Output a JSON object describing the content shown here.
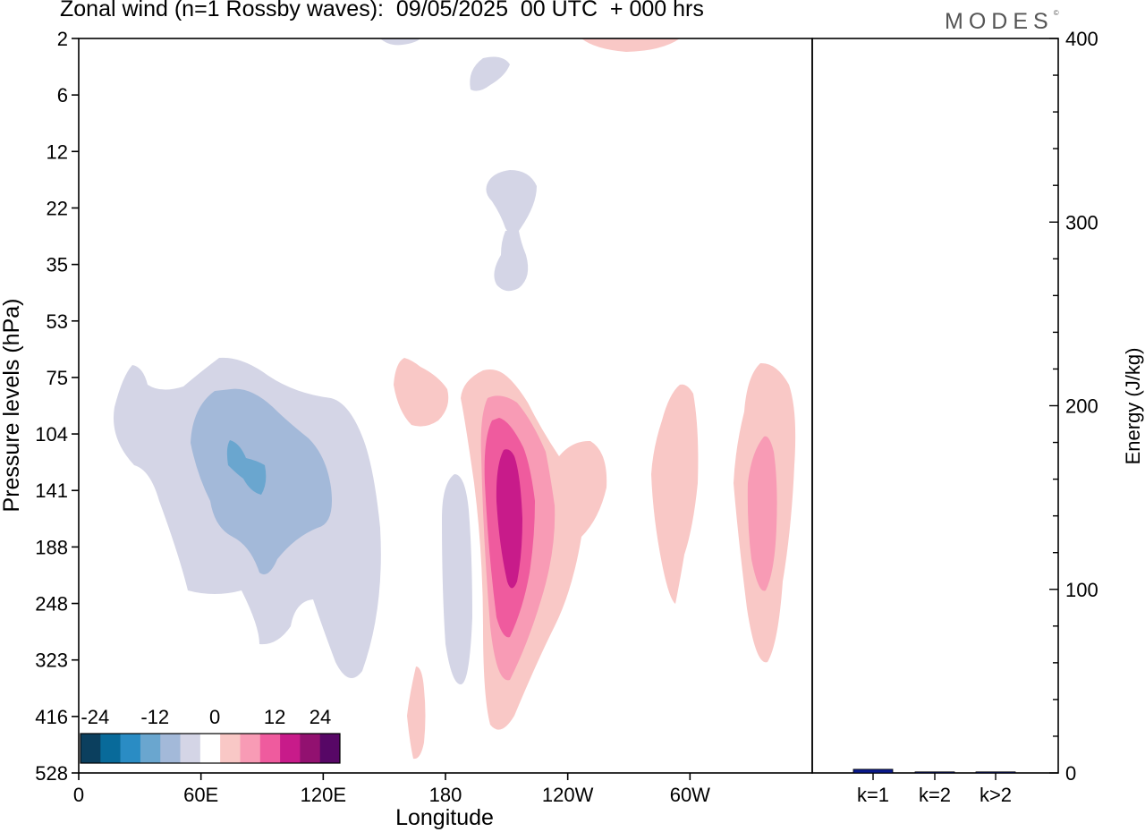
{
  "title": "Zonal wind (n=1 Rossby waves):  09/05/2025  00 UTC  + 000 hrs",
  "brand": {
    "text": "MODES",
    "mark": "©"
  },
  "chart_data": [
    {
      "type": "heatmap",
      "xlabel": "Longitude",
      "ylabel": "Pressure levels (hPa)",
      "x_ticks": [
        "0",
        "60E",
        "120E",
        "180",
        "120W",
        "60W"
      ],
      "y_ticks": [
        "2",
        "6",
        "12",
        "22",
        "35",
        "53",
        "75",
        "104",
        "141",
        "188",
        "248",
        "323",
        "416",
        "528"
      ],
      "colorbar": {
        "labels": [
          "-24",
          "-12",
          "0",
          "12",
          "24"
        ],
        "levels": [
          -30,
          -25,
          -20,
          -15,
          -10,
          -5,
          0,
          5,
          10,
          15,
          20,
          25,
          30
        ],
        "colors": [
          "#0b3f5e",
          "#086a9a",
          "#2a8cc4",
          "#6aa6cf",
          "#a3b9d9",
          "#d4d5e6",
          "#ffffff",
          "#f9c8c6",
          "#f89bb5",
          "#ef5b9e",
          "#c81b8a",
          "#921170",
          "#570766"
        ]
      },
      "contours": [
        {
          "value": -5,
          "color": "#d4d5e6",
          "regions": [
            "west-pacific-blob",
            "column-160w",
            "strato-115w-upper",
            "strato-115w-lower",
            "top-155e",
            "tube-170e"
          ]
        },
        {
          "value": -10,
          "color": "#a3b9d9",
          "regions": [
            "core-80e"
          ]
        },
        {
          "value": -15,
          "color": "#6aa6cf",
          "regions": [
            "inner-80e"
          ]
        },
        {
          "value": 5,
          "color": "#f9c8c6",
          "regions": [
            "main-150w",
            "lobe-165w",
            "lobe-70w",
            "lobe-25w",
            "tube-170w",
            "top-120w"
          ]
        },
        {
          "value": 10,
          "color": "#f89bb5",
          "regions": [
            "main-150w",
            "core-25w"
          ]
        },
        {
          "value": 15,
          "color": "#ef5b9e",
          "regions": [
            "main-150w"
          ]
        },
        {
          "value": 20,
          "color": "#c81b8a",
          "regions": [
            "main-150w"
          ]
        }
      ]
    },
    {
      "type": "bar",
      "categories": [
        "k=1",
        "k=2",
        "k>2"
      ],
      "values": [
        2,
        0.3,
        0.5
      ],
      "ylabel": "Energy (J/kg)",
      "ylim": [
        0,
        400
      ],
      "y_ticks": [
        "0",
        "100",
        "200",
        "300",
        "400"
      ],
      "bar_color": "#0a1a8c"
    }
  ]
}
